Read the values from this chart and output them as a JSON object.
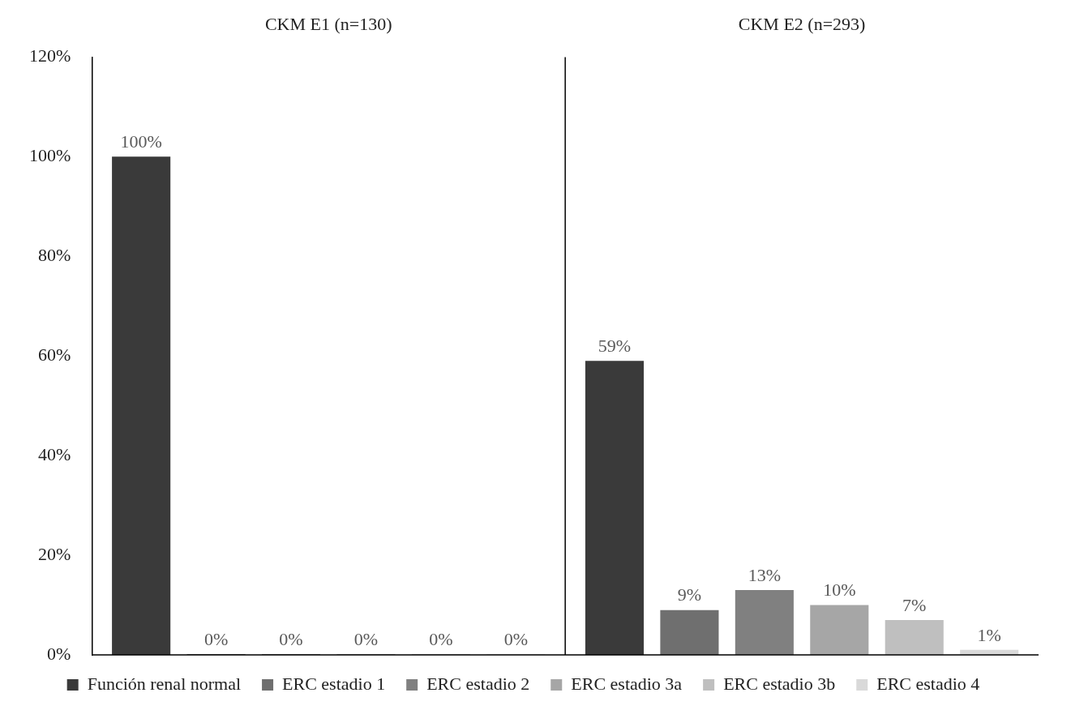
{
  "chart_data": {
    "type": "bar",
    "categories": [
      "CKM E1 (n=130)",
      "CKM E2 (n=293)"
    ],
    "series": [
      {
        "name": "Función renal normal",
        "color": "#3a3a3a",
        "values": [
          100,
          59
        ],
        "value_labels": [
          "100%",
          "59%"
        ]
      },
      {
        "name": "ERC estadio 1",
        "color": "#6f6f6f",
        "values": [
          0,
          9
        ],
        "value_labels": [
          "0%",
          "9%"
        ]
      },
      {
        "name": "ERC estadio 2",
        "color": "#808080",
        "values": [
          0,
          13
        ],
        "value_labels": [
          "0%",
          "13%"
        ]
      },
      {
        "name": "ERC estadio 3a",
        "color": "#a6a6a6",
        "values": [
          0,
          10
        ],
        "value_labels": [
          "0%",
          "10%"
        ]
      },
      {
        "name": "ERC estadio 3b",
        "color": "#bfbfbf",
        "values": [
          0,
          7
        ],
        "value_labels": [
          "0%",
          "7%"
        ]
      },
      {
        "name": "ERC estadio 4",
        "color": "#d9d9d9",
        "values": [
          0,
          1
        ],
        "value_labels": [
          "0%",
          "1%"
        ]
      }
    ],
    "ylim": [
      0,
      120
    ],
    "yticks": [
      {
        "value": 0,
        "label": "0%"
      },
      {
        "value": 20,
        "label": "20%"
      },
      {
        "value": 40,
        "label": "40%"
      },
      {
        "value": 60,
        "label": "60%"
      },
      {
        "value": 80,
        "label": "80%"
      },
      {
        "value": 100,
        "label": "100%"
      },
      {
        "value": 120,
        "label": "120%"
      }
    ],
    "grid": "x",
    "legend": "bottom"
  }
}
